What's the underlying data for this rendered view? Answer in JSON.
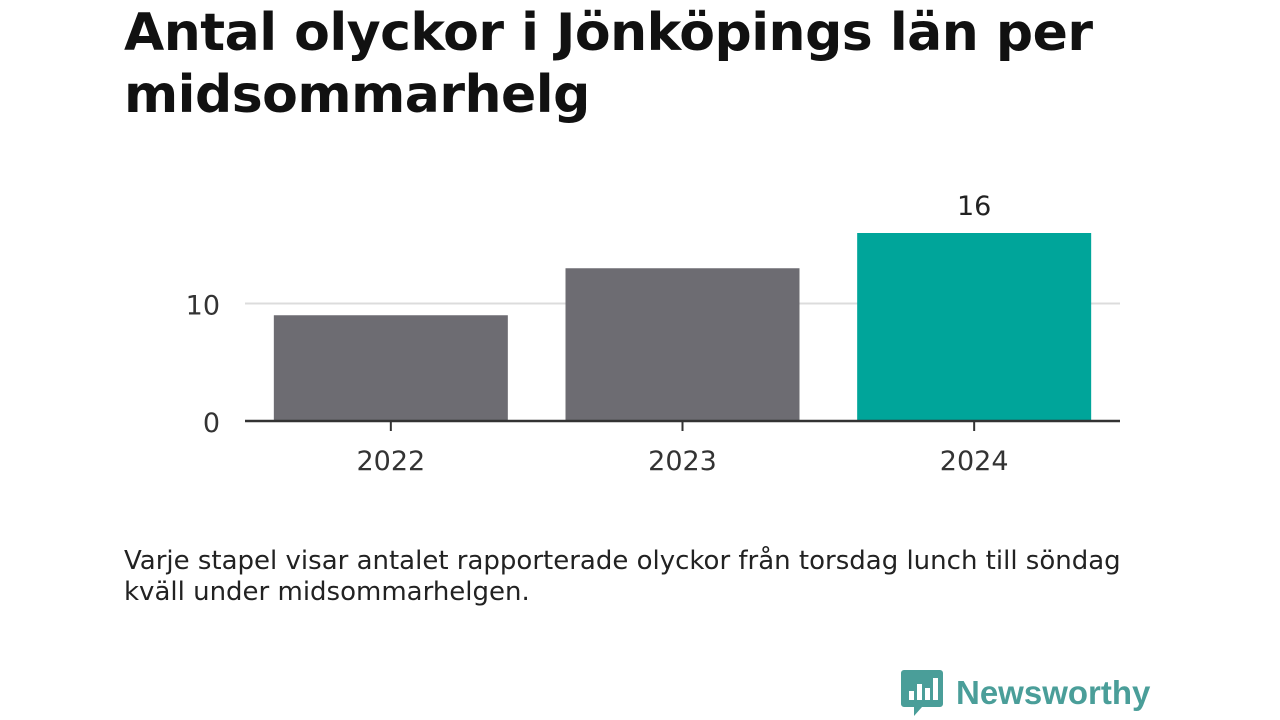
{
  "title": "Antal olyckor i Jönköpings län per midsommarhelg",
  "caption": "Varje stapel visar antalet rapporterade olyckor från torsdag lunch till söndag kväll under midsommarhelgen.",
  "brand": {
    "name": "Newsworthy",
    "color": "#4a9e99",
    "icon": "newsworthy-logo-icon"
  },
  "chart_data": {
    "type": "bar",
    "title": "Antal olyckor i Jönköpings län per midsommarhelg",
    "xlabel": "",
    "ylabel": "",
    "categories": [
      "2022",
      "2023",
      "2024"
    ],
    "values": [
      9,
      13,
      16
    ],
    "ylim": [
      0,
      17
    ],
    "yticks": [
      0,
      10
    ],
    "grid": true,
    "colors": [
      "#6d6c72",
      "#6d6c72",
      "#00a59a"
    ],
    "data_labels": [
      {
        "index": 2,
        "text": "16"
      }
    ]
  }
}
